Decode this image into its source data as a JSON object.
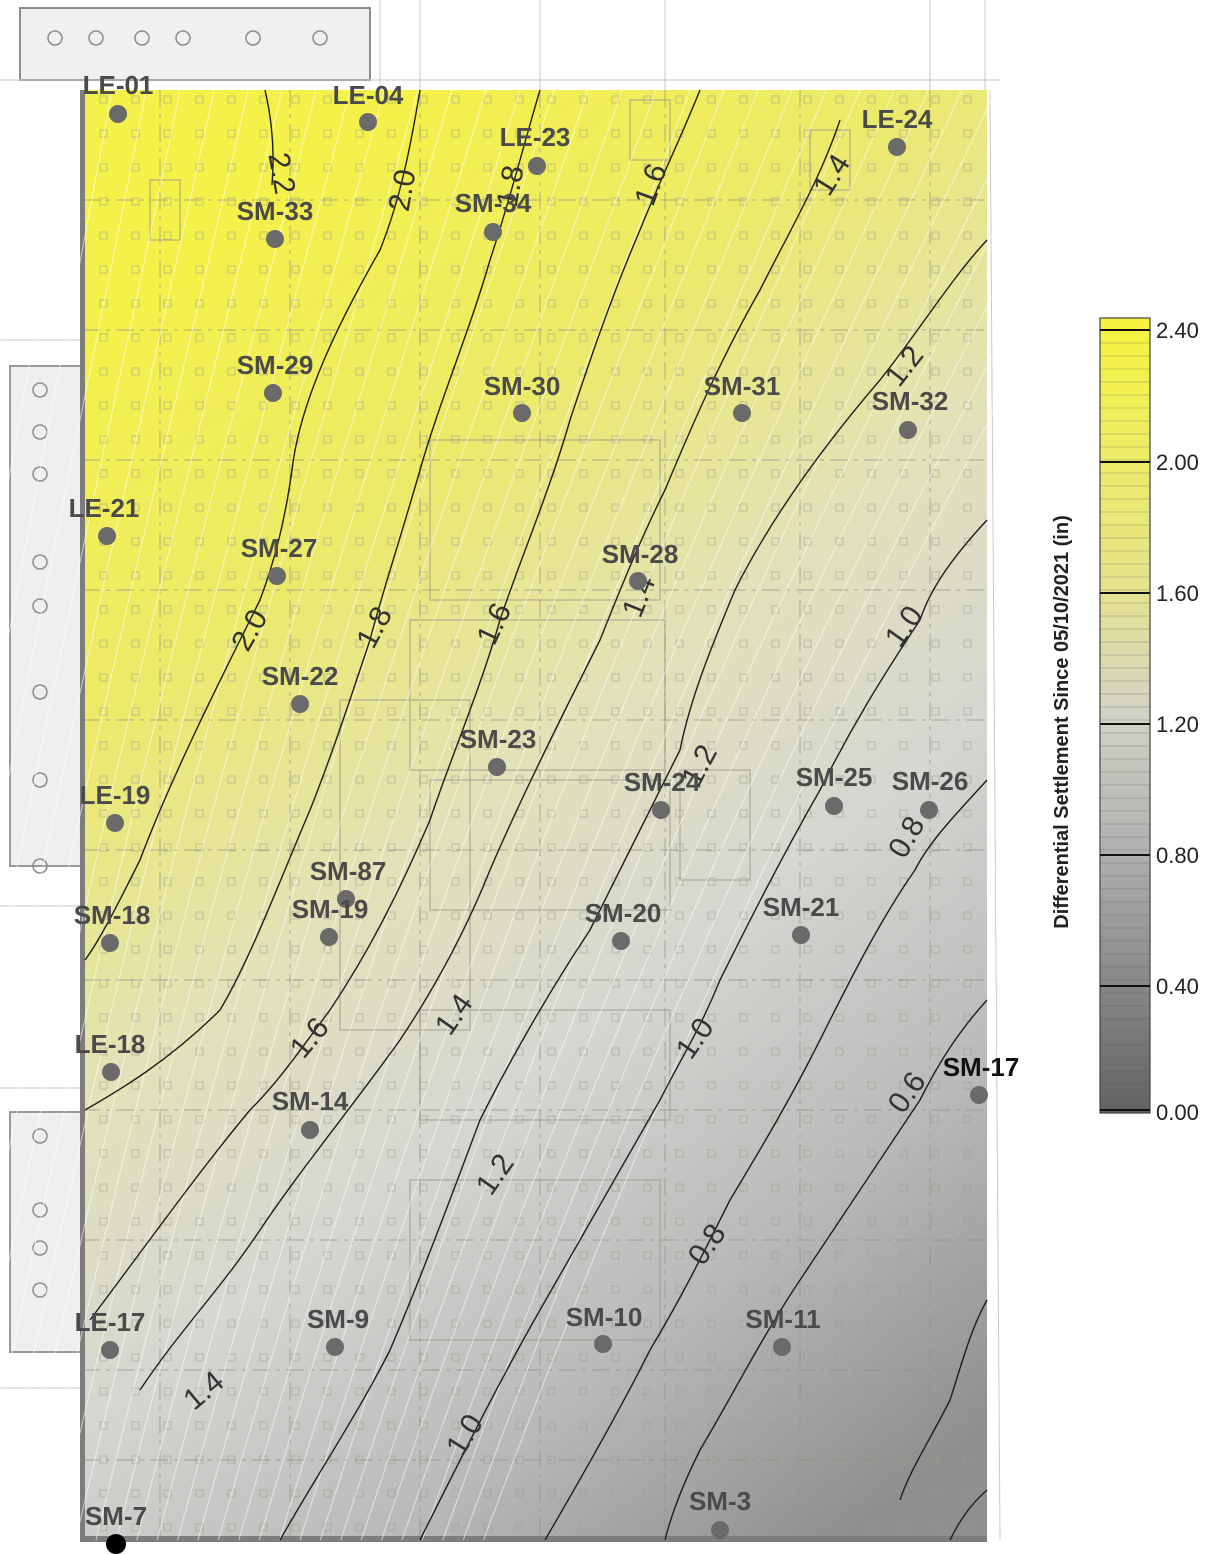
{
  "legend": {
    "title": "Differential Settlement Since 05/10/2021 (in)",
    "ticks": [
      "2.40",
      "2.00",
      "1.60",
      "1.20",
      "0.80",
      "0.40",
      "0.00"
    ],
    "colors": {
      "high": "#f2f04a",
      "mid": "#d4d4c4",
      "low": "#6e6e6e"
    }
  },
  "contour_labels": [
    "2.2",
    "2.0",
    "1.8",
    "1.6",
    "1.4",
    "1.2",
    "2.0",
    "1.8",
    "1.6",
    "1.4",
    "1.2",
    "1.0",
    "0.8",
    "1.6",
    "1.4",
    "1.0",
    "0.6",
    "1.2",
    "0.8",
    "1.4",
    "1.0"
  ],
  "points": [
    {
      "name": "LE-01"
    },
    {
      "name": "LE-04"
    },
    {
      "name": "LE-23"
    },
    {
      "name": "LE-24"
    },
    {
      "name": "SM-33"
    },
    {
      "name": "SM-34"
    },
    {
      "name": "SM-29"
    },
    {
      "name": "SM-30"
    },
    {
      "name": "SM-31"
    },
    {
      "name": "SM-32"
    },
    {
      "name": "LE-21"
    },
    {
      "name": "SM-27"
    },
    {
      "name": "SM-28"
    },
    {
      "name": "SM-22"
    },
    {
      "name": "SM-23"
    },
    {
      "name": "SM-24"
    },
    {
      "name": "SM-25"
    },
    {
      "name": "SM-26"
    },
    {
      "name": "LE-19"
    },
    {
      "name": "SM-87"
    },
    {
      "name": "SM-19"
    },
    {
      "name": "SM-18"
    },
    {
      "name": "SM-20"
    },
    {
      "name": "SM-21"
    },
    {
      "name": "LE-18"
    },
    {
      "name": "SM-17"
    },
    {
      "name": "SM-14"
    },
    {
      "name": "LE-17"
    },
    {
      "name": "SM-9"
    },
    {
      "name": "SM-10"
    },
    {
      "name": "SM-11"
    },
    {
      "name": "SM-7"
    },
    {
      "name": "SM-3"
    }
  ]
}
